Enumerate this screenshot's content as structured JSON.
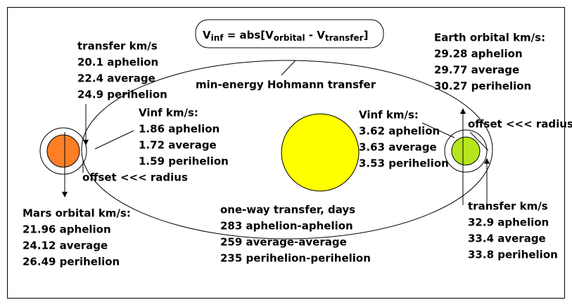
{
  "formula": {
    "v1": "V",
    "inf": "inf",
    "mid": " = abs[V",
    "orbital": "orbital",
    "minus": " - V",
    "transfer": "transfer",
    "close": "]"
  },
  "hohmann_label": "min-energy Hohmann transfer",
  "offset_labels": [
    "offset <<< radius",
    "offset <<< radius"
  ],
  "groups": [
    {
      "title": "transfer km/s",
      "lines": [
        "20.1 aphelion",
        "22.4 average",
        "24.9 perihelion"
      ]
    },
    {
      "title": "Vinf km/s:",
      "lines": [
        "1.86 aphelion",
        "1.72 average",
        "1.59 perihelion"
      ]
    },
    {
      "title": "Mars orbital km/s:",
      "lines": [
        "21.96 aphelion",
        "24.12 average",
        "26.49 perihelion"
      ]
    },
    {
      "title": "one-way transfer, days",
      "lines": [
        "283 aphelion-aphelion",
        "259 average-average",
        "235 perihelion-perihelion"
      ]
    },
    {
      "title": "Vinf km/s:",
      "lines": [
        "3.62 aphelion",
        "3.63 average",
        "3.53 perihelion"
      ]
    },
    {
      "title": "Earth orbital km/s:",
      "lines": [
        "29.28 aphelion",
        "29.77 average",
        "30.27 perihelion"
      ]
    },
    {
      "title": "transfer km/s",
      "lines": [
        "32.9 aphelion",
        "33.4 average",
        "33.8 perihelion"
      ]
    }
  ]
}
